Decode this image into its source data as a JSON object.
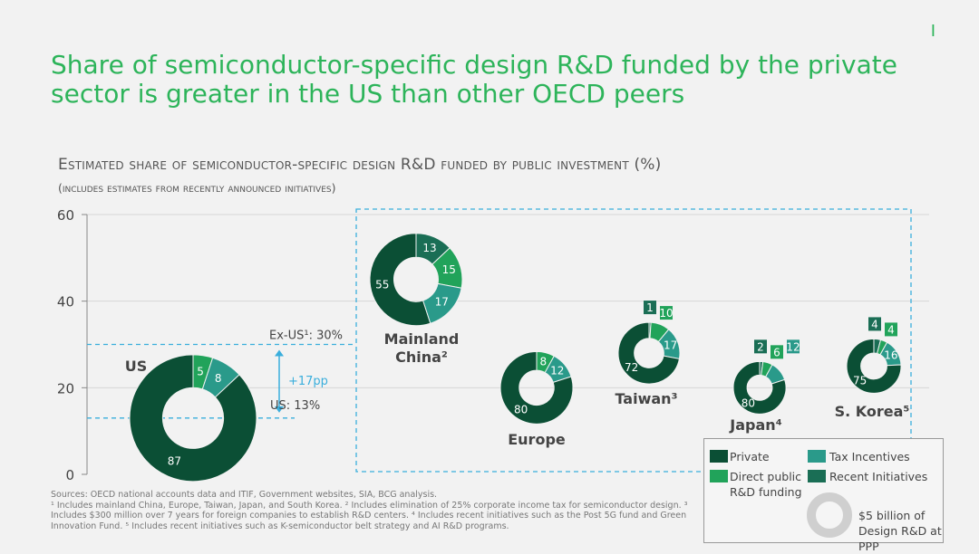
{
  "page_number": "I",
  "title": "Share of semiconductor-specific design R&D funded by the private sector is greater in the US than other OECD peers",
  "subtitle": "Estimated share of semiconductor-specific design R&D funded by public investment (%)",
  "subtitle2": "(includes estimates from recently announced initiatives)",
  "colors": {
    "private": "#0b4f35",
    "direct_public": "#21a35a",
    "tax_incentives": "#2a9a8a",
    "recent_initiatives": "#1a6e55",
    "accent_line": "#3aaedc",
    "title": "#2db45a"
  },
  "annotations": {
    "ex_us": "Ex-US¹: 30%",
    "us": "US: 13%",
    "diff": "+17pp"
  },
  "legend": {
    "private": "Private",
    "tax_incentives": "Tax Incentives",
    "direct_public": "Direct public R&D funding",
    "recent_initiatives": "Recent Initiatives",
    "size_note": "$5 billion of Design R&D at PPP"
  },
  "sources": [
    "Sources: OECD national accounts data and ITIF, Government websites, SIA, BCG analysis.",
    "¹ Includes mainland China, Europe, Taiwan, Japan, and South Korea. ² Includes elimination of 25% corporate income tax for semiconductor design. ³ Includes $300 million over 7 years for foreign companies to establish R&D centers. ⁴ Includes recent initiatives such as the Post 5G fund and Green Innovation Fund. ⁵ Includes recent initiatives such as K-semiconductor belt strategy and AI R&D programs."
  ],
  "chart_data": {
    "type": "scatter",
    "subtype": "bubble-donut",
    "ylim": [
      0,
      60
    ],
    "yticks": [
      0,
      20,
      40,
      60
    ],
    "series_names": [
      "Private",
      "Direct public R&D funding",
      "Tax Incentives",
      "Recent Initiatives"
    ],
    "points": [
      {
        "name": "US",
        "label": "US",
        "y": 13,
        "segments": {
          "private": 87,
          "direct_public": 5,
          "tax_incentives": 8,
          "recent_initiatives": 0
        }
      },
      {
        "name": "Mainland China",
        "label": "Mainland China²",
        "y": 45,
        "segments": {
          "private": 55,
          "direct_public": 15,
          "tax_incentives": 17,
          "recent_initiatives": 13
        }
      },
      {
        "name": "Europe",
        "label": "Europe",
        "y": 20,
        "segments": {
          "private": 80,
          "direct_public": 8,
          "tax_incentives": 12,
          "recent_initiatives": 0
        }
      },
      {
        "name": "Taiwan",
        "label": "Taiwan³",
        "y": 28,
        "segments": {
          "private": 72,
          "direct_public": 10,
          "tax_incentives": 17,
          "recent_initiatives": 1
        }
      },
      {
        "name": "Japan",
        "label": "Japan⁴",
        "y": 20,
        "segments": {
          "private": 80,
          "direct_public": 6,
          "tax_incentives": 12,
          "recent_initiatives": 2
        }
      },
      {
        "name": "S. Korea",
        "label": "S. Korea⁵",
        "y": 25,
        "segments": {
          "private": 75,
          "direct_public": 4,
          "tax_incentives": 16,
          "recent_initiatives": 4
        }
      }
    ]
  }
}
